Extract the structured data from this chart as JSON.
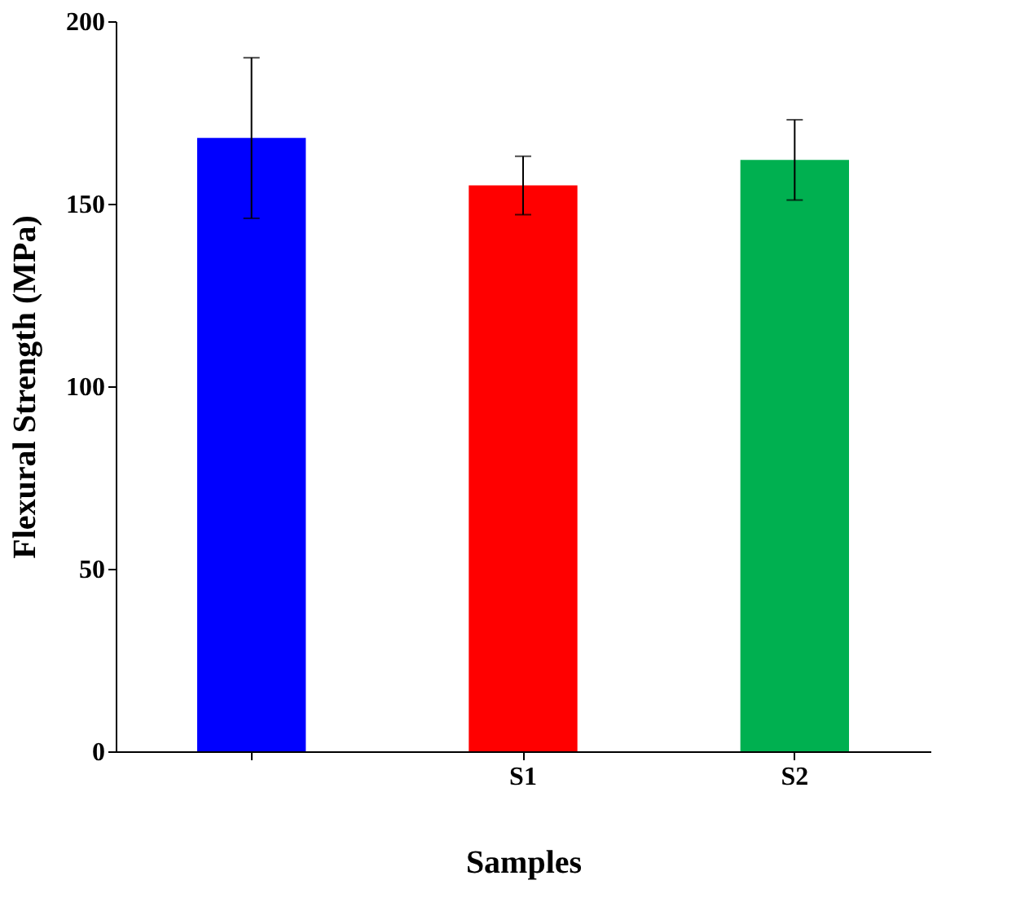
{
  "chart_data": {
    "type": "bar",
    "xlabel": "Samples",
    "ylabel": "Flexural Strength (MPa)",
    "categories": [
      null,
      "S1",
      "S2"
    ],
    "values": [
      168,
      155,
      162
    ],
    "colors": [
      "#0000ff",
      "#ff0000",
      "#00b050"
    ],
    "errors": [
      22,
      8,
      11
    ],
    "ylim": [
      0,
      200
    ],
    "yticks": [
      0,
      50,
      100,
      150,
      200
    ],
    "grid": false
  }
}
